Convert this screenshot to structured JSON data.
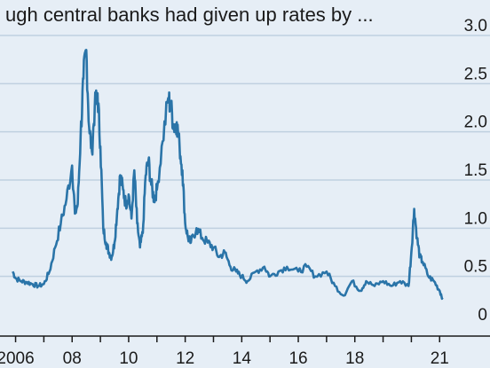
{
  "title_fragment": "ugh central banks had given up rates by ... ",
  "chart_data": {
    "type": "line",
    "title": "",
    "xlabel": "",
    "ylabel": "",
    "ylim": [
      0,
      3.0
    ],
    "yticks": [
      0,
      0.5,
      1.0,
      1.5,
      2.0,
      2.5,
      3.0
    ],
    "ytick_labels": [
      "0",
      "0.5",
      "1.0",
      "1.5",
      "2.0",
      "2.5",
      "3.0"
    ],
    "xlim": [
      2005.7,
      2021.4
    ],
    "xticks": [
      2006,
      2008,
      2010,
      2012,
      2014,
      2016,
      2018,
      2021
    ],
    "xtick_labels": [
      "2006",
      "08",
      "10",
      "12",
      "14",
      "16",
      "18",
      "21"
    ],
    "grid": "horizontal",
    "legend": "none",
    "colors": {
      "line": "#2a74a8",
      "grid": "#bfd0e0",
      "background": "#e6eef6",
      "axis": "#1a1a1a"
    },
    "series": [
      {
        "x": [
          2005.9,
          2006.0,
          2006.2,
          2006.4,
          2006.6,
          2006.8,
          2007.0,
          2007.2,
          2007.4,
          2007.6,
          2007.8,
          2008.0,
          2008.1,
          2008.2,
          2008.3,
          2008.4,
          2008.5,
          2008.6,
          2008.7,
          2008.8,
          2008.9,
          2009.0,
          2009.1,
          2009.2,
          2009.3,
          2009.4,
          2009.5,
          2009.6,
          2009.7,
          2009.8,
          2009.9,
          2010.0,
          2010.1,
          2010.2,
          2010.3,
          2010.4,
          2010.5,
          2010.6,
          2010.7,
          2010.8,
          2010.9,
          2011.0,
          2011.2,
          2011.4,
          2011.5,
          2011.6,
          2011.7,
          2011.8,
          2011.9,
          2012.0,
          2012.1,
          2012.2,
          2012.4,
          2012.6,
          2012.8,
          2013.0,
          2013.2,
          2013.4,
          2013.6,
          2013.8,
          2014.0,
          2014.2,
          2014.5,
          2014.8,
          2015.0,
          2015.3,
          2015.6,
          2016.0,
          2016.3,
          2016.6,
          2017.0,
          2017.3,
          2017.6,
          2017.9,
          2018.2,
          2018.4,
          2018.7,
          2019.0,
          2019.3,
          2019.6,
          2019.9,
          2020.0,
          2020.1,
          2020.2,
          2020.3,
          2020.4,
          2020.6,
          2020.8,
          2021.0,
          2021.1
        ],
        "values": [
          0.55,
          0.48,
          0.45,
          0.44,
          0.42,
          0.4,
          0.42,
          0.55,
          0.8,
          1.05,
          1.3,
          1.65,
          1.15,
          1.25,
          1.95,
          2.55,
          2.85,
          2.05,
          1.8,
          2.25,
          2.4,
          1.85,
          1.0,
          0.85,
          0.75,
          0.7,
          0.85,
          1.2,
          1.55,
          1.4,
          1.25,
          1.35,
          1.1,
          1.6,
          1.05,
          0.8,
          0.95,
          1.55,
          1.7,
          1.45,
          1.3,
          1.4,
          1.9,
          2.35,
          2.25,
          2.05,
          2.1,
          1.85,
          1.6,
          1.05,
          0.9,
          0.85,
          1.0,
          0.9,
          0.85,
          0.8,
          0.7,
          0.75,
          0.6,
          0.55,
          0.5,
          0.45,
          0.55,
          0.6,
          0.5,
          0.55,
          0.6,
          0.55,
          0.6,
          0.5,
          0.55,
          0.4,
          0.3,
          0.45,
          0.35,
          0.45,
          0.4,
          0.45,
          0.4,
          0.45,
          0.4,
          0.75,
          1.2,
          0.9,
          0.7,
          0.65,
          0.5,
          0.45,
          0.35,
          0.28
        ]
      }
    ]
  }
}
